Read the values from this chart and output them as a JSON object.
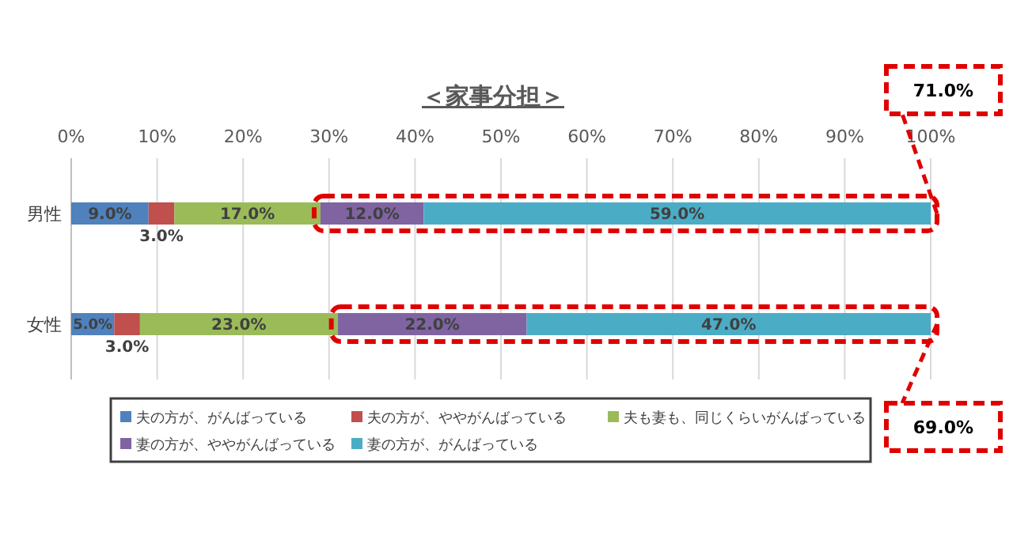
{
  "chart_data": {
    "type": "bar",
    "orientation": "horizontal",
    "stacked": true,
    "title": "＜家事分担＞",
    "categories": [
      "男性",
      "女性"
    ],
    "series": [
      {
        "name": "夫の方が、がんばっている",
        "color": "#4f81bd",
        "values": [
          9,
          5
        ],
        "value_labels": [
          "9.0%",
          "5.0%"
        ]
      },
      {
        "name": "夫の方が、ややがんばっている",
        "color": "#c0504d",
        "values": [
          3,
          3
        ],
        "value_labels": [
          "3.0%",
          "3.0%"
        ]
      },
      {
        "name": "夫も妻も、同じくらいがんばっている",
        "color": "#9bbb59",
        "values": [
          17,
          23
        ],
        "value_labels": [
          "17.0%",
          "23.0%"
        ]
      },
      {
        "name": "妻の方が、ややがんばっている",
        "color": "#8064a2",
        "values": [
          12,
          22
        ],
        "value_labels": [
          "12.0%",
          "22.0%"
        ]
      },
      {
        "name": "妻の方が、がんばっている",
        "color": "#4bacc6",
        "values": [
          59,
          47
        ],
        "value_labels": [
          "59.0%",
          "47.0%"
        ]
      }
    ],
    "xlim": [
      0,
      100
    ],
    "xticks": [
      {
        "value": 0,
        "label": "0%"
      },
      {
        "value": 10,
        "label": "10%"
      },
      {
        "value": 20,
        "label": "20%"
      },
      {
        "value": 30,
        "label": "30%"
      },
      {
        "value": 40,
        "label": "40%"
      },
      {
        "value": 50,
        "label": "50%"
      },
      {
        "value": 60,
        "label": "60%"
      },
      {
        "value": 70,
        "label": "70%"
      },
      {
        "value": 80,
        "label": "80%"
      },
      {
        "value": 90,
        "label": "90%"
      },
      {
        "value": 100,
        "label": "100%"
      }
    ],
    "grid": "x",
    "legend": "bottom",
    "annotations": [
      {
        "text": "71.0%",
        "x": 100,
        "y": "男性"
      },
      {
        "text": "69.0%",
        "x": 100,
        "y": "女性"
      }
    ]
  }
}
